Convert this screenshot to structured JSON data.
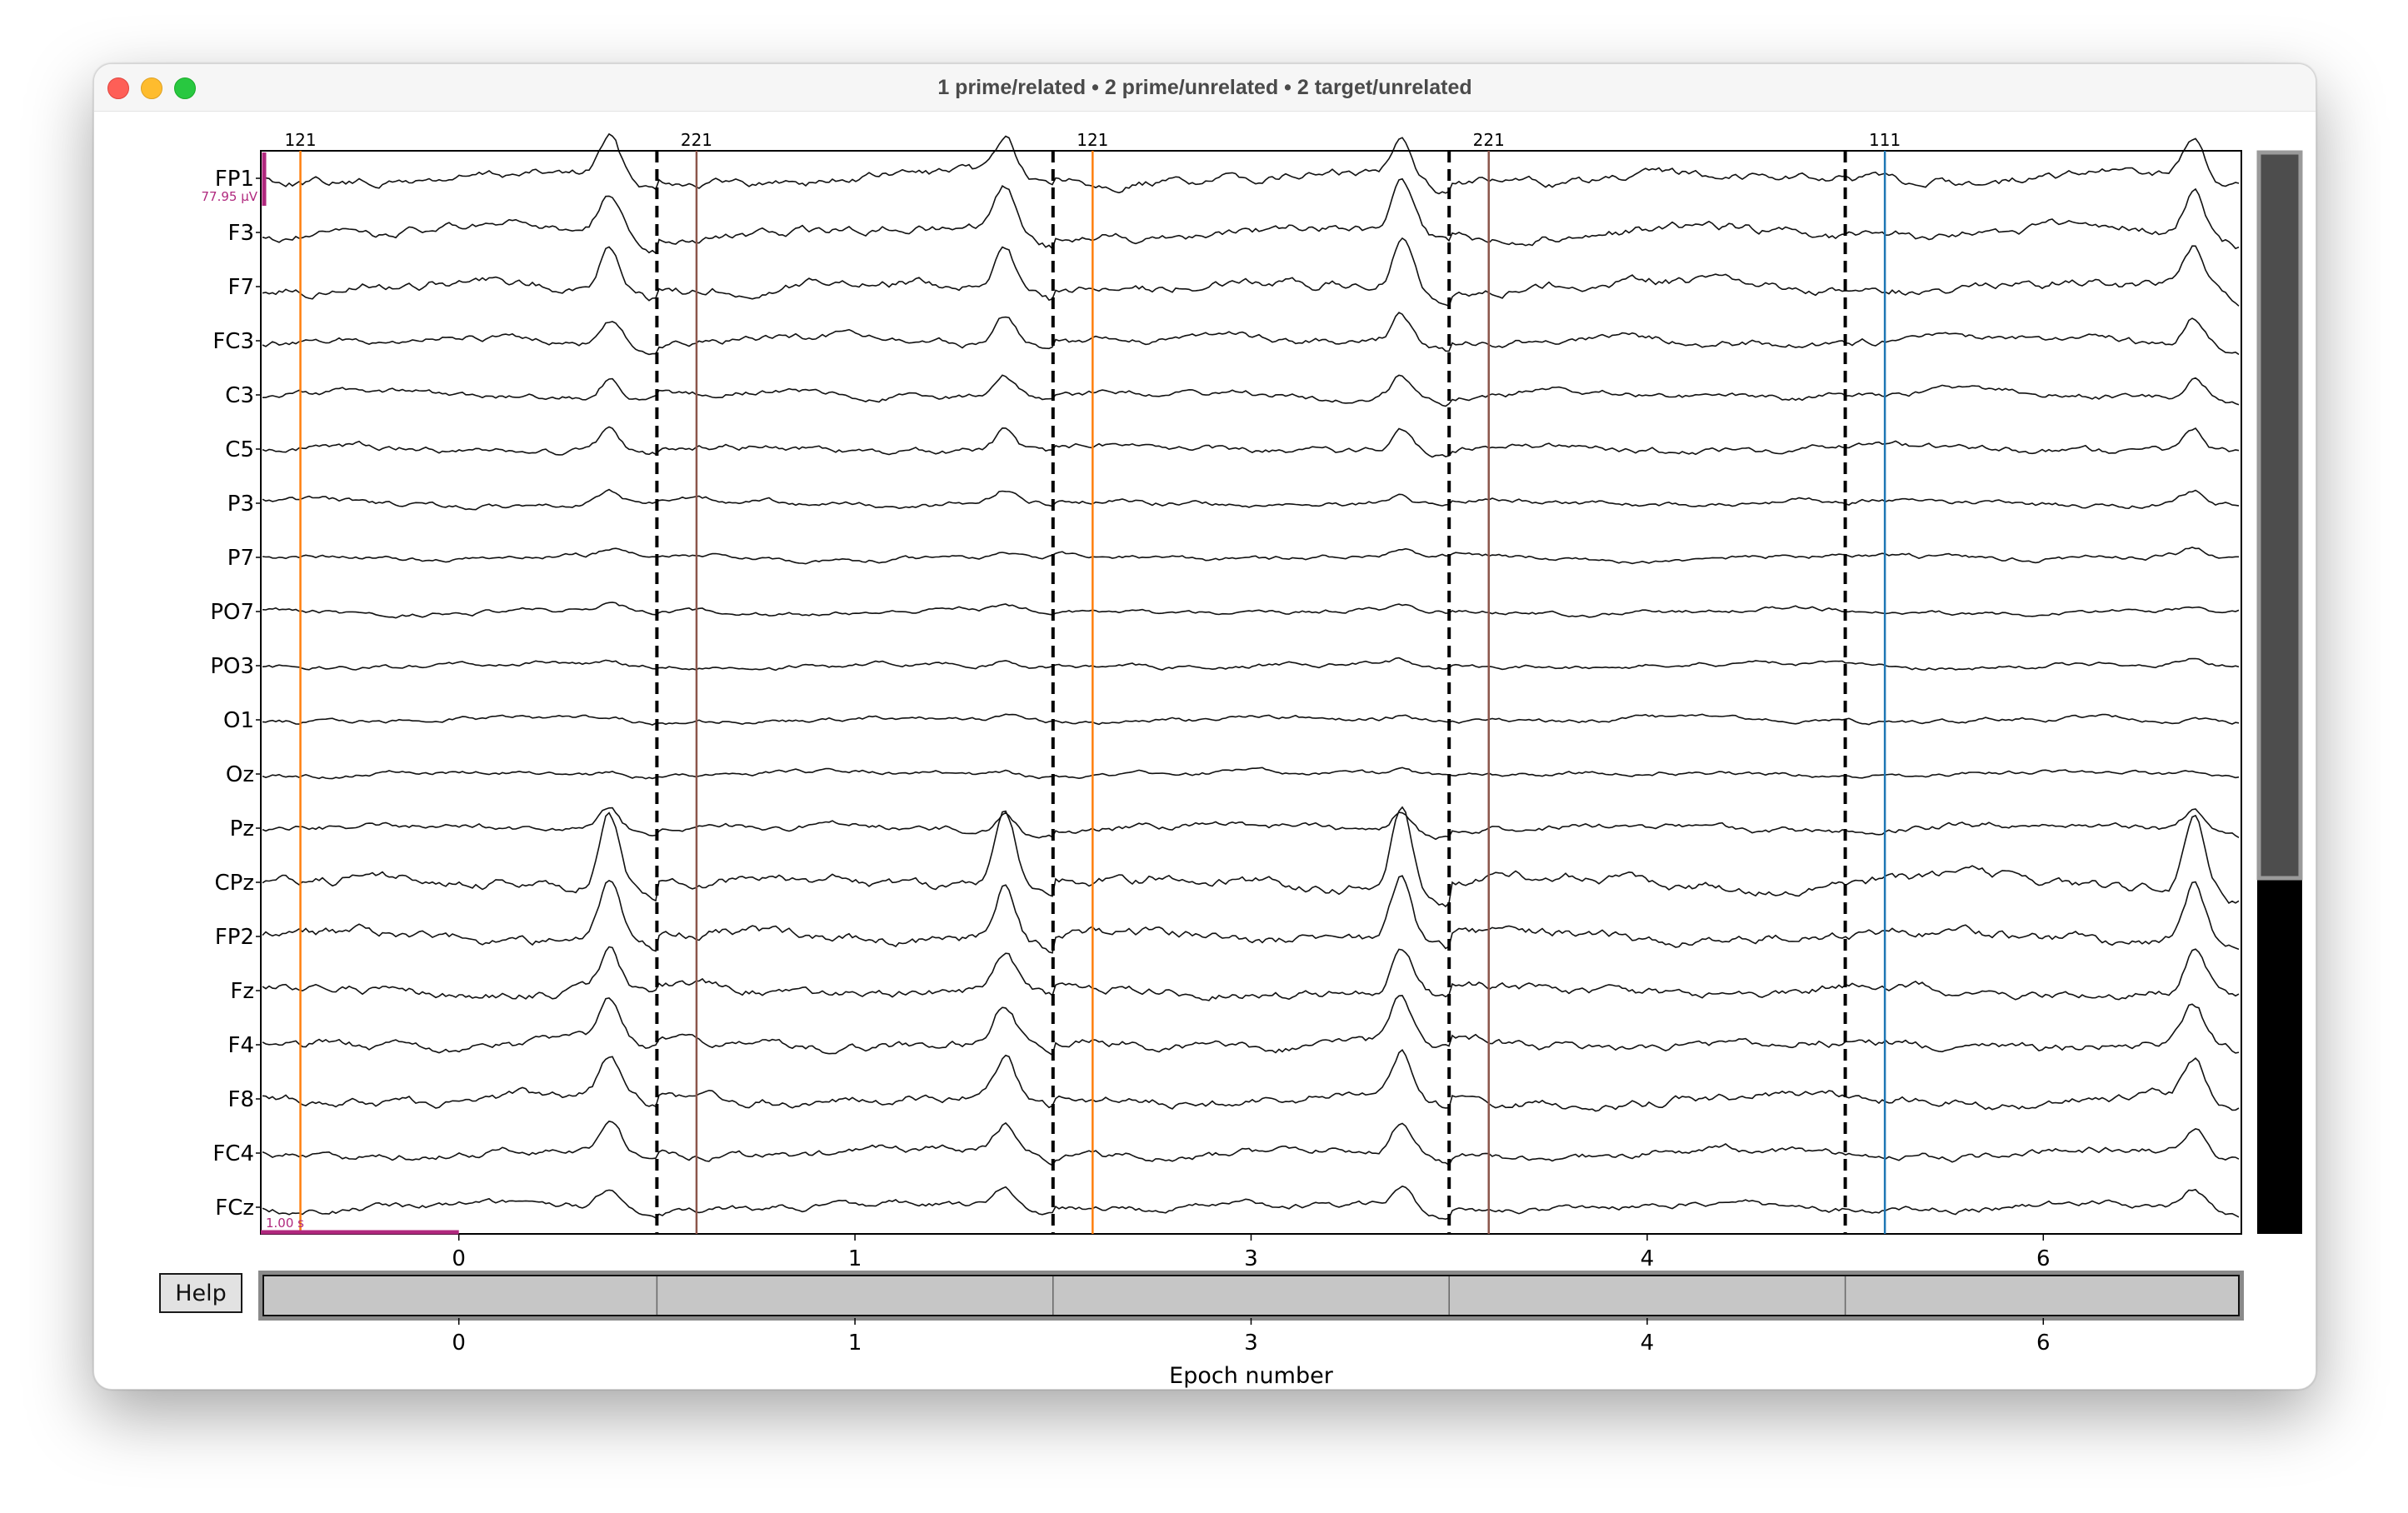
{
  "window": {
    "title": "1 prime/related • 2 prime/unrelated • 2 target/unrelated"
  },
  "help_button": {
    "label": "Help"
  },
  "scale": {
    "amplitude_label": "77.95 µV",
    "time_label": "1.00 s"
  },
  "chart_data": {
    "type": "line",
    "channels": [
      "FP1",
      "F3",
      "F7",
      "FC3",
      "C3",
      "C5",
      "P3",
      "P7",
      "PO7",
      "PO3",
      "O1",
      "Oz",
      "Pz",
      "CPz",
      "FP2",
      "Fz",
      "F4",
      "F8",
      "FC4",
      "FCz"
    ],
    "epochs": [
      "0",
      "1",
      "3",
      "4",
      "6"
    ],
    "xlabel": "Epoch number",
    "events": [
      {
        "label": "121",
        "color": "#ff7f0e"
      },
      {
        "label": "221",
        "color": "#8c564b"
      },
      {
        "label": "121",
        "color": "#ff7f0e"
      },
      {
        "label": "221",
        "color": "#8c564b"
      },
      {
        "label": "111",
        "color": "#1f77b4"
      }
    ],
    "channel_peak_amplitude": [
      1.0,
      1.1,
      1.1,
      0.7,
      0.5,
      0.5,
      0.3,
      0.15,
      0.1,
      0.1,
      0.1,
      0.1,
      0.5,
      1.9,
      1.4,
      1.0,
      1.0,
      1.0,
      0.7,
      0.5
    ],
    "epoch_peak_present": [
      true,
      true,
      true,
      false,
      true
    ],
    "scrollbar_fraction": 0.67,
    "colors": {
      "scale": "#b0287e",
      "trace": "#111111",
      "boundary": "#000000"
    }
  }
}
